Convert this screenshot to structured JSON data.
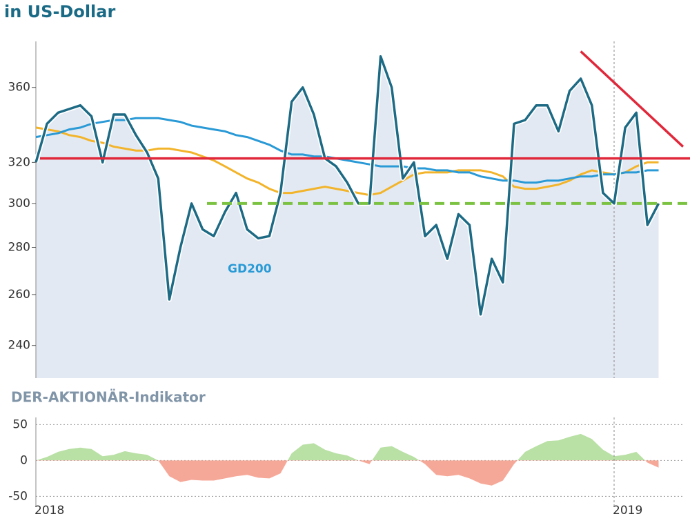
{
  "chart_data": [
    {
      "type": "line",
      "title": "in US-Dollar",
      "log_scale": true,
      "categories": [
        "2018",
        null,
        null,
        null,
        null,
        null,
        null,
        null,
        null,
        null,
        null,
        null,
        null,
        null,
        null,
        null,
        null,
        null,
        null,
        null,
        null,
        null,
        null,
        null,
        null,
        null,
        null,
        null,
        null,
        null,
        null,
        null,
        null,
        null,
        null,
        null,
        null,
        null,
        null,
        null,
        null,
        null,
        null,
        null,
        null,
        null,
        null,
        null,
        null,
        null,
        null,
        null,
        "2019",
        null,
        null,
        null,
        null
      ],
      "ylim": [
        228,
        387
      ],
      "yticks": [
        240,
        260,
        280,
        300,
        320,
        360
      ],
      "series": [
        {
          "color": "#1d6a85",
          "fill": "#e3e9f2",
          "values": [
            320,
            340,
            346,
            348,
            350,
            344,
            320,
            345,
            345,
            334,
            325,
            312,
            258,
            280,
            300,
            288,
            285,
            296,
            305,
            288,
            284,
            285,
            305,
            352,
            360,
            345,
            322,
            318,
            310,
            300,
            300,
            378,
            360,
            312,
            320,
            285,
            290,
            275,
            295,
            290,
            252,
            275,
            265,
            340,
            342,
            350,
            350,
            336,
            358,
            365,
            350,
            305,
            300,
            338,
            346,
            290,
            300
          ]
        },
        {
          "name": "GD200",
          "color": "#2a9ad6",
          "values": [
            333,
            334,
            335,
            337,
            338,
            340,
            341,
            342,
            342,
            343,
            343,
            343,
            342,
            341,
            339,
            338,
            337,
            336,
            334,
            333,
            331,
            329,
            326,
            324,
            324,
            323,
            323,
            322,
            321,
            320,
            319,
            318,
            318,
            318,
            317,
            317,
            316,
            316,
            315,
            315,
            313,
            312,
            311,
            311,
            310,
            310,
            311,
            311,
            312,
            313,
            313,
            314,
            314,
            315,
            315,
            316,
            316
          ]
        },
        {
          "color": "#f2b42b",
          "values": [
            338,
            337,
            336,
            334,
            333,
            331,
            330,
            328,
            327,
            326,
            326,
            327,
            327,
            326,
            325,
            323,
            321,
            318,
            315,
            312,
            310,
            307,
            305,
            305,
            306,
            307,
            308,
            307,
            306,
            305,
            304,
            305,
            308,
            311,
            314,
            315,
            315,
            315,
            316,
            316,
            316,
            315,
            313,
            308,
            307,
            307,
            308,
            309,
            311,
            314,
            316,
            315,
            314,
            315,
            318,
            320,
            320
          ]
        }
      ],
      "levels": [
        {
          "value": 322,
          "color": "#e0283a",
          "style": "solid"
        },
        {
          "value": 300,
          "color": "#7cc242",
          "style": "dashed"
        }
      ],
      "trendline": {
        "x": [
          49,
          58.2
        ],
        "y": [
          381,
          328
        ],
        "color": "#e0283a"
      }
    },
    {
      "type": "area",
      "title": "DER-AKTIONÄR-Indikator",
      "categories": [
        "2018",
        null,
        null,
        null,
        null,
        null,
        null,
        null,
        null,
        null,
        null,
        null,
        null,
        null,
        null,
        null,
        null,
        null,
        null,
        null,
        null,
        null,
        null,
        null,
        null,
        null,
        null,
        null,
        null,
        null,
        null,
        null,
        null,
        null,
        null,
        null,
        null,
        null,
        null,
        null,
        null,
        null,
        null,
        null,
        null,
        null,
        null,
        null,
        null,
        null,
        null,
        null,
        "2019",
        null,
        null,
        null,
        null
      ],
      "ylim": [
        -65,
        60
      ],
      "yticks": [
        -50,
        0,
        50
      ],
      "positive_color": "#b9e0a5",
      "negative_color": "#f6a898",
      "series": [
        {
          "values": [
            0,
            5,
            12,
            16,
            18,
            16,
            6,
            8,
            13,
            10,
            8,
            0,
            -22,
            -30,
            -27,
            -28,
            -28,
            -25,
            -22,
            -20,
            -24,
            -25,
            -18,
            10,
            22,
            24,
            15,
            10,
            7,
            0,
            -5,
            18,
            20,
            12,
            5,
            -5,
            -20,
            -22,
            -20,
            -25,
            -32,
            -35,
            -28,
            -5,
            12,
            20,
            27,
            28,
            33,
            37,
            30,
            15,
            6,
            8,
            12,
            -3,
            -10
          ]
        }
      ]
    }
  ]
}
